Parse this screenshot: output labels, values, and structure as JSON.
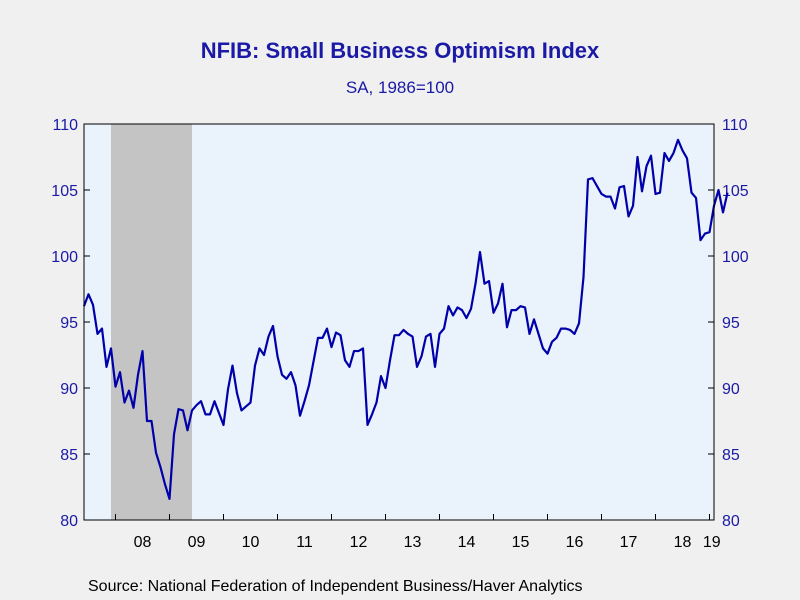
{
  "chart_data": {
    "type": "line",
    "title": "NFIB: Small Business Optimism Index",
    "subtitle": "SA, 1986=100",
    "xlabel": "",
    "ylabel": "",
    "ylim": [
      80,
      110
    ],
    "y_ticks": [
      80,
      85,
      90,
      95,
      100,
      105,
      110
    ],
    "x_tick_labels": [
      "08",
      "09",
      "10",
      "11",
      "12",
      "13",
      "14",
      "15",
      "16",
      "17",
      "18",
      "19"
    ],
    "x_range": [
      "2007-06",
      "2019-02"
    ],
    "recession_shading": {
      "start": "2007-12",
      "end": "2009-06",
      "color": "#c4c4c4"
    },
    "plot_background": "#eaf2fc",
    "line_color": "#0000aa",
    "grid": false,
    "series": [
      {
        "start": "2007-06",
        "values": [
          96.2,
          97.1,
          96.3,
          94.1,
          94.5,
          91.6,
          93.0,
          90.1,
          91.2,
          88.9,
          89.8,
          88.5,
          91.0,
          92.8,
          87.5,
          87.5,
          85.1,
          84.0,
          82.7,
          81.6,
          86.5,
          88.4,
          88.3,
          86.8,
          88.3,
          88.7,
          89.0,
          88.0,
          88.0,
          89.0,
          88.1,
          87.2,
          89.9,
          91.7,
          89.6,
          88.3,
          88.6,
          88.9,
          91.7,
          93.0,
          92.5,
          93.9,
          94.7,
          92.4,
          91.0,
          90.7,
          91.2,
          90.2,
          87.9,
          89.0,
          90.2,
          92.0,
          93.8,
          93.8,
          94.5,
          93.1,
          94.2,
          94.0,
          92.1,
          91.6,
          92.8,
          92.8,
          93.0,
          87.2,
          88.0,
          88.9,
          90.9,
          90.0,
          92.1,
          94.0,
          94.0,
          94.4,
          94.1,
          93.9,
          91.6,
          92.4,
          93.9,
          94.1,
          91.6,
          94.1,
          94.5,
          96.2,
          95.5,
          96.1,
          95.9,
          95.3,
          96.0,
          97.9,
          100.3,
          97.9,
          98.1,
          95.7,
          96.4,
          97.9,
          94.6,
          95.9,
          95.9,
          96.2,
          96.1,
          94.1,
          95.2,
          94.1,
          93.0,
          92.6,
          93.5,
          93.8,
          94.5,
          94.5,
          94.4,
          94.1,
          94.9,
          98.4,
          105.8,
          105.9,
          105.3,
          104.7,
          104.5,
          104.5,
          103.6,
          105.2,
          105.3,
          103.0,
          103.8,
          107.5,
          104.9,
          106.8,
          107.6,
          104.7,
          104.8,
          107.8,
          107.2,
          107.8,
          108.8,
          108.0,
          107.4,
          104.8,
          104.4,
          101.2,
          101.7,
          101.8,
          103.8,
          105.0,
          103.3,
          104.8
        ]
      }
    ]
  },
  "source": "Source:  National Federation of Independent Business/Haver Analytics"
}
